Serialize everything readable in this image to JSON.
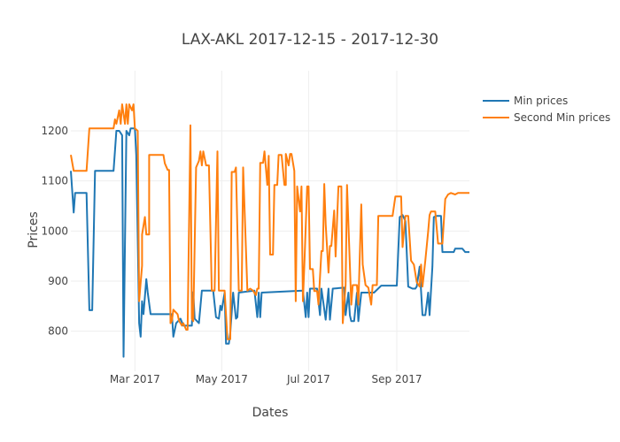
{
  "chart_data": {
    "type": "line",
    "title": "LAX-AKL 2017-12-15 - 2017-12-30",
    "xlabel": "Dates",
    "ylabel": "Prices",
    "xlim": [
      "2017-01-15",
      "2017-10-22"
    ],
    "ylim": [
      720,
      1320
    ],
    "x_ticks": [
      {
        "value": "2017-03-01",
        "label": "Mar 2017"
      },
      {
        "value": "2017-05-01",
        "label": "May 2017"
      },
      {
        "value": "2017-07-01",
        "label": "Jul 2017"
      },
      {
        "value": "2017-09-01",
        "label": "Sep 2017"
      }
    ],
    "y_ticks": [
      800,
      900,
      1000,
      1100,
      1200
    ],
    "grid": true,
    "legend_position": "top-right",
    "series": [
      {
        "name": "Min prices",
        "color": "#1f77b4",
        "points": [
          [
            "2017-01-15",
            1120
          ],
          [
            "2017-01-17",
            1037
          ],
          [
            "2017-01-18",
            1076
          ],
          [
            "2017-01-26",
            1076
          ],
          [
            "2017-01-28",
            842
          ],
          [
            "2017-01-30",
            842
          ],
          [
            "2017-02-01",
            1120
          ],
          [
            "2017-02-14",
            1120
          ],
          [
            "2017-02-16",
            1200
          ],
          [
            "2017-02-18",
            1200
          ],
          [
            "2017-02-20",
            1191
          ],
          [
            "2017-02-21",
            749
          ],
          [
            "2017-02-23",
            1200
          ],
          [
            "2017-02-25",
            1191
          ],
          [
            "2017-02-26",
            1205
          ],
          [
            "2017-03-01",
            1205
          ],
          [
            "2017-03-02",
            1152
          ],
          [
            "2017-03-04",
            816
          ],
          [
            "2017-03-05",
            789
          ],
          [
            "2017-03-06",
            860
          ],
          [
            "2017-03-07",
            834
          ],
          [
            "2017-03-09",
            904
          ],
          [
            "2017-03-10",
            877
          ],
          [
            "2017-03-12",
            834
          ],
          [
            "2017-03-27",
            834
          ],
          [
            "2017-03-28",
            789
          ],
          [
            "2017-03-30",
            816
          ],
          [
            "2017-04-02",
            825
          ],
          [
            "2017-04-04",
            811
          ],
          [
            "2017-04-10",
            811
          ],
          [
            "2017-04-11",
            878
          ],
          [
            "2017-04-12",
            825
          ],
          [
            "2017-04-15",
            816
          ],
          [
            "2017-04-17",
            881
          ],
          [
            "2017-04-25",
            881
          ],
          [
            "2017-04-27",
            828
          ],
          [
            "2017-04-29",
            825
          ],
          [
            "2017-04-30",
            851
          ],
          [
            "2017-05-01",
            842
          ],
          [
            "2017-05-03",
            877
          ],
          [
            "2017-05-04",
            775
          ],
          [
            "2017-05-06",
            775
          ],
          [
            "2017-05-07",
            798
          ],
          [
            "2017-05-09",
            877
          ],
          [
            "2017-05-11",
            825
          ],
          [
            "2017-05-12",
            828
          ],
          [
            "2017-05-13",
            877
          ],
          [
            "2017-05-24",
            881
          ],
          [
            "2017-05-26",
            828
          ],
          [
            "2017-05-27",
            877
          ],
          [
            "2017-05-28",
            828
          ],
          [
            "2017-05-29",
            877
          ],
          [
            "2017-06-27",
            881
          ],
          [
            "2017-06-29",
            828
          ],
          [
            "2017-06-30",
            877
          ],
          [
            "2017-07-01",
            828
          ],
          [
            "2017-07-02",
            885
          ],
          [
            "2017-07-07",
            885
          ],
          [
            "2017-07-09",
            832
          ],
          [
            "2017-07-10",
            885
          ],
          [
            "2017-07-13",
            823
          ],
          [
            "2017-07-15",
            885
          ],
          [
            "2017-07-16",
            823
          ],
          [
            "2017-07-18",
            885
          ],
          [
            "2017-07-26",
            887
          ],
          [
            "2017-07-27",
            832
          ],
          [
            "2017-07-29",
            877
          ],
          [
            "2017-07-30",
            832
          ],
          [
            "2017-07-31",
            820
          ],
          [
            "2017-08-02",
            820
          ],
          [
            "2017-08-04",
            877
          ],
          [
            "2017-08-05",
            820
          ],
          [
            "2017-08-07",
            877
          ],
          [
            "2017-08-16",
            877
          ],
          [
            "2017-08-21",
            891
          ],
          [
            "2017-08-29",
            891
          ],
          [
            "2017-09-01",
            891
          ],
          [
            "2017-09-03",
            1028
          ],
          [
            "2017-09-05",
            1032
          ],
          [
            "2017-09-07",
            1020
          ],
          [
            "2017-09-09",
            889
          ],
          [
            "2017-09-12",
            885
          ],
          [
            "2017-09-14",
            885
          ],
          [
            "2017-09-15",
            889
          ],
          [
            "2017-09-17",
            929
          ],
          [
            "2017-09-19",
            832
          ],
          [
            "2017-09-21",
            832
          ],
          [
            "2017-09-23",
            877
          ],
          [
            "2017-09-24",
            832
          ],
          [
            "2017-09-26",
            929
          ],
          [
            "2017-09-27",
            1028
          ],
          [
            "2017-09-29",
            1030
          ],
          [
            "2017-10-02",
            1030
          ],
          [
            "2017-10-03",
            958
          ],
          [
            "2017-10-11",
            958
          ],
          [
            "2017-10-12",
            965
          ],
          [
            "2017-10-17",
            965
          ],
          [
            "2017-10-19",
            958
          ],
          [
            "2017-10-22",
            958
          ]
        ]
      },
      {
        "name": "Second Min prices",
        "color": "#ff7f0e",
        "points": [
          [
            "2017-01-15",
            1152
          ],
          [
            "2017-01-17",
            1120
          ],
          [
            "2017-01-26",
            1120
          ],
          [
            "2017-01-28",
            1205
          ],
          [
            "2017-02-01",
            1205
          ],
          [
            "2017-02-14",
            1205
          ],
          [
            "2017-02-15",
            1223
          ],
          [
            "2017-02-16",
            1214
          ],
          [
            "2017-02-18",
            1241
          ],
          [
            "2017-02-19",
            1214
          ],
          [
            "2017-02-20",
            1253
          ],
          [
            "2017-02-22",
            1214
          ],
          [
            "2017-02-23",
            1253
          ],
          [
            "2017-02-24",
            1214
          ],
          [
            "2017-02-25",
            1253
          ],
          [
            "2017-02-27",
            1241
          ],
          [
            "2017-02-28",
            1253
          ],
          [
            "2017-03-01",
            1205
          ],
          [
            "2017-03-03",
            1200
          ],
          [
            "2017-03-04",
            860
          ],
          [
            "2017-03-06",
            931
          ],
          [
            "2017-03-06",
            993
          ],
          [
            "2017-03-08",
            1028
          ],
          [
            "2017-03-09",
            993
          ],
          [
            "2017-03-11",
            993
          ],
          [
            "2017-03-11",
            1152
          ],
          [
            "2017-03-14",
            1152
          ],
          [
            "2017-03-21",
            1152
          ],
          [
            "2017-03-22",
            1135
          ],
          [
            "2017-03-24",
            1122
          ],
          [
            "2017-03-25",
            1122
          ],
          [
            "2017-03-26",
            816
          ],
          [
            "2017-03-27",
            821
          ],
          [
            "2017-03-28",
            843
          ],
          [
            "2017-03-31",
            834
          ],
          [
            "2017-04-01",
            821
          ],
          [
            "2017-04-03",
            811
          ],
          [
            "2017-04-04",
            816
          ],
          [
            "2017-04-06",
            803
          ],
          [
            "2017-04-07",
            803
          ],
          [
            "2017-04-09",
            1211
          ],
          [
            "2017-04-10",
            825
          ],
          [
            "2017-04-11",
            820
          ],
          [
            "2017-04-13",
            1127
          ],
          [
            "2017-04-15",
            1140
          ],
          [
            "2017-04-16",
            1159
          ],
          [
            "2017-04-17",
            1131
          ],
          [
            "2017-04-18",
            1159
          ],
          [
            "2017-04-20",
            1131
          ],
          [
            "2017-04-22",
            1131
          ],
          [
            "2017-04-24",
            881
          ],
          [
            "2017-04-26",
            881
          ],
          [
            "2017-04-28",
            1159
          ],
          [
            "2017-04-29",
            881
          ],
          [
            "2017-05-03",
            881
          ],
          [
            "2017-05-05",
            784
          ],
          [
            "2017-05-07",
            784
          ],
          [
            "2017-05-08",
            1118
          ],
          [
            "2017-05-10",
            1118
          ],
          [
            "2017-05-11",
            1127
          ],
          [
            "2017-05-13",
            881
          ],
          [
            "2017-05-15",
            881
          ],
          [
            "2017-05-16",
            1127
          ],
          [
            "2017-05-19",
            881
          ],
          [
            "2017-05-21",
            885
          ],
          [
            "2017-05-23",
            881
          ],
          [
            "2017-05-25",
            872
          ],
          [
            "2017-05-26",
            885
          ],
          [
            "2017-05-27",
            885
          ],
          [
            "2017-05-28",
            1136
          ],
          [
            "2017-05-30",
            1136
          ],
          [
            "2017-05-31",
            1159
          ],
          [
            "2017-06-02",
            1092
          ],
          [
            "2017-06-03",
            1150
          ],
          [
            "2017-06-04",
            953
          ],
          [
            "2017-06-06",
            953
          ],
          [
            "2017-06-07",
            1092
          ],
          [
            "2017-06-09",
            1092
          ],
          [
            "2017-06-10",
            1152
          ],
          [
            "2017-06-12",
            1152
          ],
          [
            "2017-06-14",
            1092
          ],
          [
            "2017-06-15",
            1092
          ],
          [
            "2017-06-15",
            1154
          ],
          [
            "2017-06-17",
            1131
          ],
          [
            "2017-06-18",
            1154
          ],
          [
            "2017-06-19",
            1154
          ],
          [
            "2017-06-21",
            1120
          ],
          [
            "2017-06-22",
            860
          ],
          [
            "2017-06-23",
            1089
          ],
          [
            "2017-06-25",
            1039
          ],
          [
            "2017-06-26",
            1089
          ],
          [
            "2017-06-27",
            860
          ],
          [
            "2017-06-28",
            931
          ],
          [
            "2017-06-30",
            1089
          ],
          [
            "2017-07-01",
            1089
          ],
          [
            "2017-07-02",
            924
          ],
          [
            "2017-07-04",
            924
          ],
          [
            "2017-07-05",
            880
          ],
          [
            "2017-07-07",
            880
          ],
          [
            "2017-07-08",
            853
          ],
          [
            "2017-07-10",
            960
          ],
          [
            "2017-07-11",
            960
          ],
          [
            "2017-07-12",
            1094
          ],
          [
            "2017-07-13",
            1014
          ],
          [
            "2017-07-15",
            917
          ],
          [
            "2017-07-16",
            970
          ],
          [
            "2017-07-17",
            970
          ],
          [
            "2017-07-19",
            1041
          ],
          [
            "2017-07-20",
            949
          ],
          [
            "2017-07-22",
            1089
          ],
          [
            "2017-07-24",
            1089
          ],
          [
            "2017-07-25",
            816
          ],
          [
            "2017-07-27",
            892
          ],
          [
            "2017-07-28",
            1092
          ],
          [
            "2017-07-30",
            933
          ],
          [
            "2017-07-31",
            853
          ],
          [
            "2017-08-01",
            892
          ],
          [
            "2017-08-04",
            892
          ],
          [
            "2017-08-05",
            853
          ],
          [
            "2017-08-07",
            1053
          ],
          [
            "2017-08-08",
            933
          ],
          [
            "2017-08-10",
            892
          ],
          [
            "2017-08-12",
            887
          ],
          [
            "2017-08-14",
            853
          ],
          [
            "2017-08-15",
            892
          ],
          [
            "2017-08-18",
            892
          ],
          [
            "2017-08-19",
            1030
          ],
          [
            "2017-08-26",
            1030
          ],
          [
            "2017-08-29",
            1030
          ],
          [
            "2017-08-31",
            1069
          ],
          [
            "2017-09-04",
            1069
          ],
          [
            "2017-09-05",
            968
          ],
          [
            "2017-09-07",
            1030
          ],
          [
            "2017-09-09",
            1030
          ],
          [
            "2017-09-11",
            941
          ],
          [
            "2017-09-13",
            933
          ],
          [
            "2017-09-15",
            898
          ],
          [
            "2017-09-17",
            889
          ],
          [
            "2017-09-18",
            933
          ],
          [
            "2017-09-19",
            889
          ],
          [
            "2017-09-21",
            941
          ],
          [
            "2017-09-23",
            999
          ],
          [
            "2017-09-24",
            1032
          ],
          [
            "2017-09-25",
            1039
          ],
          [
            "2017-09-28",
            1039
          ],
          [
            "2017-09-30",
            975
          ],
          [
            "2017-10-03",
            975
          ],
          [
            "2017-10-05",
            1064
          ],
          [
            "2017-10-07",
            1073
          ],
          [
            "2017-10-09",
            1076
          ],
          [
            "2017-10-12",
            1073
          ],
          [
            "2017-10-14",
            1076
          ],
          [
            "2017-10-22",
            1076
          ]
        ]
      }
    ]
  }
}
